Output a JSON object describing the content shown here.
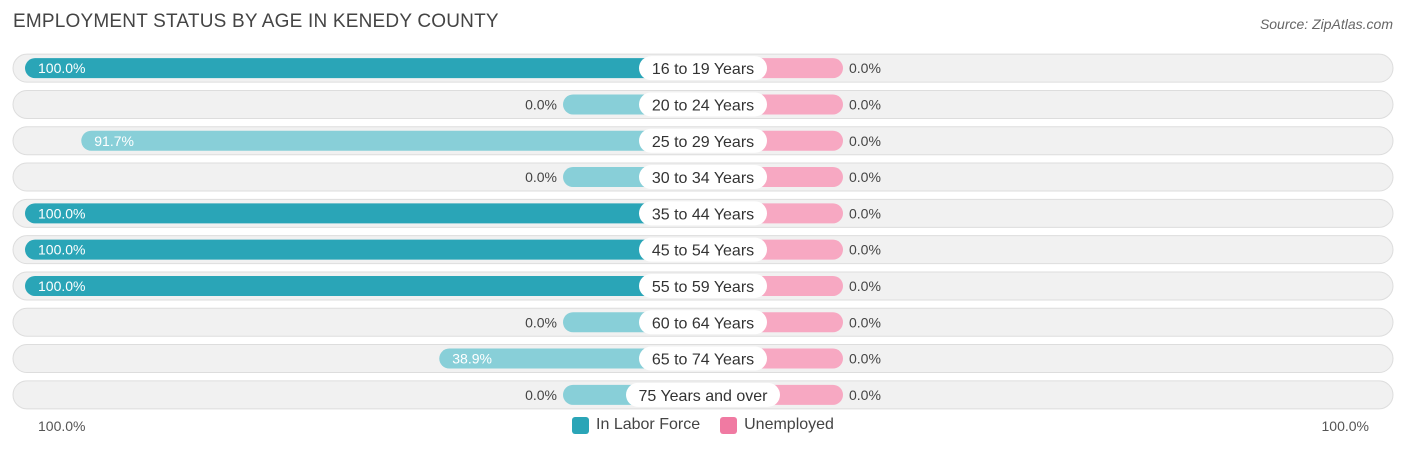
{
  "title": "EMPLOYMENT STATUS BY AGE IN KENEDY COUNTY",
  "source": "Source: ZipAtlas.com",
  "axis": {
    "left_label": "100.0%",
    "right_label": "100.0%"
  },
  "colors": {
    "labor_full": "#2aa5b7",
    "labor_light": "#88cfd8",
    "unemployed": "#f7a8c2",
    "unemployed_legend": "#f07aa2",
    "row_bg": "#f1f1f1",
    "row_border": "#dddddd"
  },
  "chart_data": {
    "type": "bar",
    "orientation": "horizontal-diverging",
    "title": "EMPLOYMENT STATUS BY AGE IN KENEDY COUNTY",
    "categories": [
      "16 to 19 Years",
      "20 to 24 Years",
      "25 to 29 Years",
      "30 to 34 Years",
      "35 to 44 Years",
      "45 to 54 Years",
      "55 to 59 Years",
      "60 to 64 Years",
      "65 to 74 Years",
      "75 Years and over"
    ],
    "series": [
      {
        "name": "In Labor Force",
        "values": [
          100.0,
          0.0,
          91.7,
          0.0,
          100.0,
          100.0,
          100.0,
          0.0,
          38.9,
          0.0
        ],
        "labels": [
          "100.0%",
          "0.0%",
          "91.7%",
          "0.0%",
          "100.0%",
          "100.0%",
          "100.0%",
          "0.0%",
          "38.9%",
          "0.0%"
        ]
      },
      {
        "name": "Unemployed",
        "values": [
          0.0,
          0.0,
          0.0,
          0.0,
          0.0,
          0.0,
          0.0,
          0.0,
          0.0,
          0.0
        ],
        "labels": [
          "0.0%",
          "0.0%",
          "0.0%",
          "0.0%",
          "0.0%",
          "0.0%",
          "0.0%",
          "0.0%",
          "0.0%",
          "0.0%"
        ]
      }
    ],
    "xlim": [
      -100,
      100
    ],
    "legend": "bottom-center"
  }
}
